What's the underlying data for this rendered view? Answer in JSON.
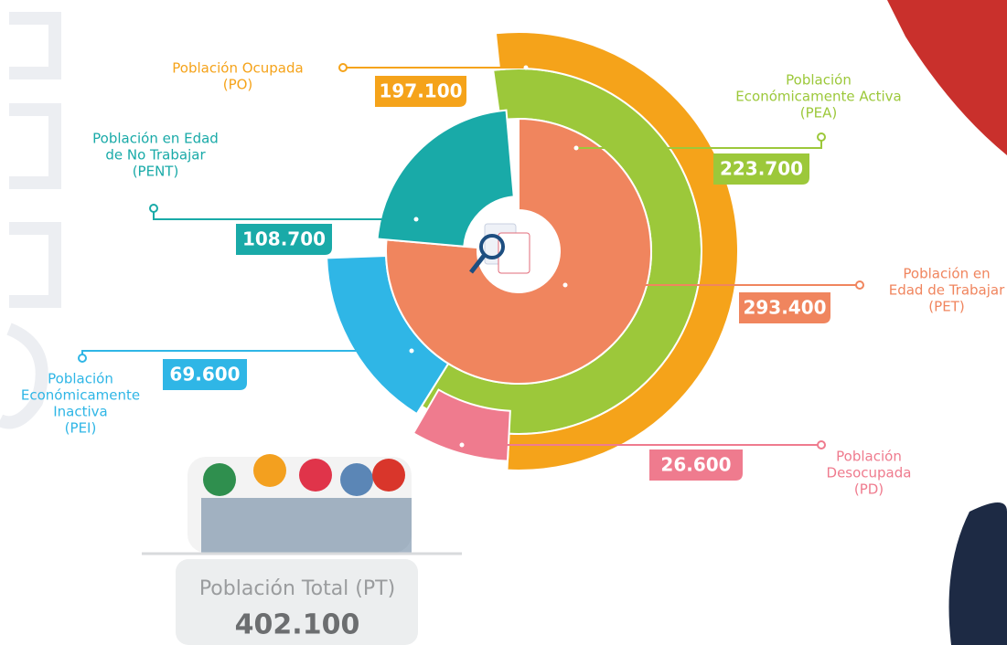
{
  "items": [
    {
      "label": [
        "Población Ocupada",
        "(PO)"
      ],
      "value": "197.100"
    },
    {
      "label": [
        "Población",
        "Económicamente Activa",
        "(PEA)"
      ],
      "value": "223.700"
    },
    {
      "label": [
        "Población en Edad",
        "de No Trabajar",
        "(PENT)"
      ],
      "value": "108.700"
    },
    {
      "label": [
        "Población en",
        "Edad de Trabajar",
        "(PET)"
      ],
      "value": "293.400"
    },
    {
      "label": [
        "Población",
        "Económicamente",
        "Inactiva",
        "(PEI)"
      ],
      "value": "69.600"
    },
    {
      "label": [
        "Población",
        "Desocupada",
        "(PD)"
      ],
      "value": "26.600"
    }
  ],
  "total": {
    "label": "Población Total (PT)",
    "value": "402.100"
  }
}
